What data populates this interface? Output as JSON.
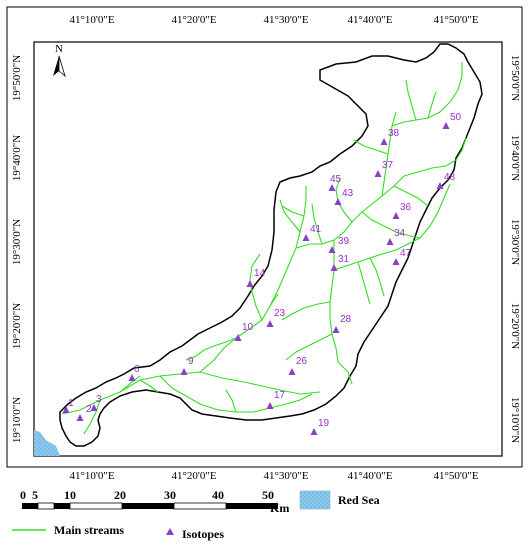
{
  "map": {
    "top_labels": [
      "41°10'0\"E",
      "41°20'0\"E",
      "41°30'0\"E",
      "41°40'0\"E",
      "41°50'0\"E"
    ],
    "bottom_labels": [
      "41°10'0\"E",
      "41°20'0\"E",
      "41°30'0\"E",
      "41°40'0\"E",
      "41°50'0\"E"
    ],
    "left_labels": [
      "19°50'0\"N",
      "19°40'0\"N",
      "19°30'0\"N",
      "19°20'0\"N",
      "19°10'0\"N"
    ],
    "right_labels": [
      "19°50'0\"N",
      "19°40'0\"N",
      "19°30'0\"N",
      "19°20'0\"N",
      "19°10'0\"N"
    ],
    "north_label": "N",
    "samples": [
      "1",
      "2",
      "3",
      "6",
      "9",
      "10",
      "14",
      "17",
      "19",
      "23",
      "26",
      "28",
      "31",
      "34",
      "36",
      "37",
      "38",
      "39",
      "41",
      "43",
      "45",
      "47",
      "48",
      "50"
    ],
    "colors": {
      "streams": "#33dd22",
      "isotopes": "#8a3fc6",
      "labels": "#9b2fc9",
      "sea": "#8ec9ec"
    }
  },
  "scale_bar": {
    "ticks": [
      "0",
      "5",
      "10",
      "20",
      "30",
      "40",
      "50"
    ],
    "unit": "Km"
  },
  "legend": {
    "sea_label": "Red Sea",
    "streams_label": "Main streams",
    "isotopes_label": "Isotopes"
  }
}
